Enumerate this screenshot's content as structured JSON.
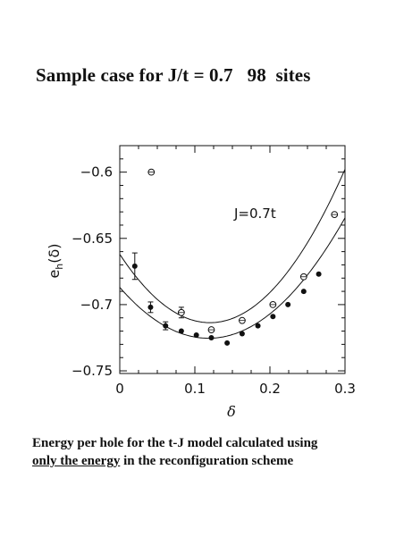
{
  "slide": {
    "title": "Sample case for J/t = 0.7   98  sites",
    "caption_line1": "Energy per hole for the t-J model calculated using",
    "caption_line2_underlined": "only the energy",
    "caption_line2_rest": " in the reconfiguration  scheme"
  },
  "chart_data": {
    "type": "scatter",
    "title": "",
    "xlabel": "δ",
    "ylabel": "e_h(δ)",
    "xlim": [
      0,
      0.3
    ],
    "ylim": [
      -0.752,
      -0.58
    ],
    "xticks": [
      0,
      0.1,
      0.2,
      0.3
    ],
    "xtick_labels": [
      "0",
      "0.1",
      "0.2",
      "0.3"
    ],
    "yticks": [
      -0.6,
      -0.65,
      -0.7,
      -0.75
    ],
    "ytick_labels": [
      "−0.6",
      "−0.65",
      "−0.7",
      "−0.75"
    ],
    "annotation": "J=0.7t",
    "grid": false,
    "series": [
      {
        "marker": "open-circle",
        "points": [
          {
            "x": 0.042,
            "y": -0.6
          },
          {
            "x": 0.082,
            "y": -0.706,
            "err": 0.004
          },
          {
            "x": 0.122,
            "y": -0.719
          },
          {
            "x": 0.163,
            "y": -0.712
          },
          {
            "x": 0.204,
            "y": -0.7
          },
          {
            "x": 0.245,
            "y": -0.679
          },
          {
            "x": 0.286,
            "y": -0.632
          }
        ]
      },
      {
        "marker": "filled-circle",
        "points": [
          {
            "x": 0.02,
            "y": -0.671,
            "err": 0.01
          },
          {
            "x": 0.041,
            "y": -0.702,
            "err": 0.004
          },
          {
            "x": 0.061,
            "y": -0.716,
            "err": 0.003
          },
          {
            "x": 0.082,
            "y": -0.72
          },
          {
            "x": 0.102,
            "y": -0.723
          },
          {
            "x": 0.122,
            "y": -0.725
          },
          {
            "x": 0.143,
            "y": -0.729
          },
          {
            "x": 0.163,
            "y": -0.722
          },
          {
            "x": 0.184,
            "y": -0.716
          },
          {
            "x": 0.204,
            "y": -0.709
          },
          {
            "x": 0.224,
            "y": -0.7
          },
          {
            "x": 0.245,
            "y": -0.69
          },
          {
            "x": 0.265,
            "y": -0.677
          }
        ]
      }
    ],
    "fit_curves": [
      {
        "through": "open-circle",
        "coeffs": [
          -0.662,
          -0.86,
          3.58
        ]
      },
      {
        "through": "filled-circle",
        "coeffs": [
          -0.687,
          -0.65,
          2.75
        ]
      }
    ]
  }
}
